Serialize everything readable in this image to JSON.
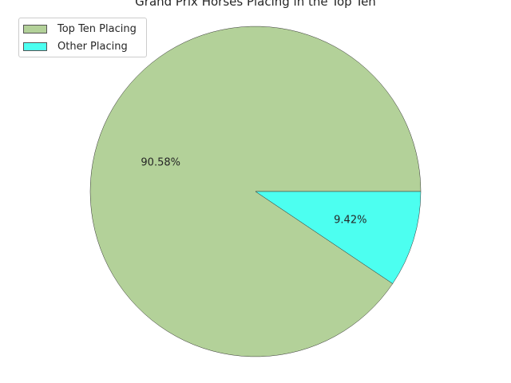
{
  "chart_data": {
    "type": "pie",
    "title": "Grand Prix Horses Placing in the Top Ten",
    "categories": [
      "Top Ten Placing",
      "Other Placing"
    ],
    "values": [
      90.58,
      9.42
    ],
    "labels": [
      "90.58%",
      "9.42%"
    ],
    "colors": [
      "#b3d199",
      "#4cfff0"
    ],
    "start_angle_deg": 0,
    "direction": "counterclockwise",
    "legend_position": "upper-left"
  }
}
